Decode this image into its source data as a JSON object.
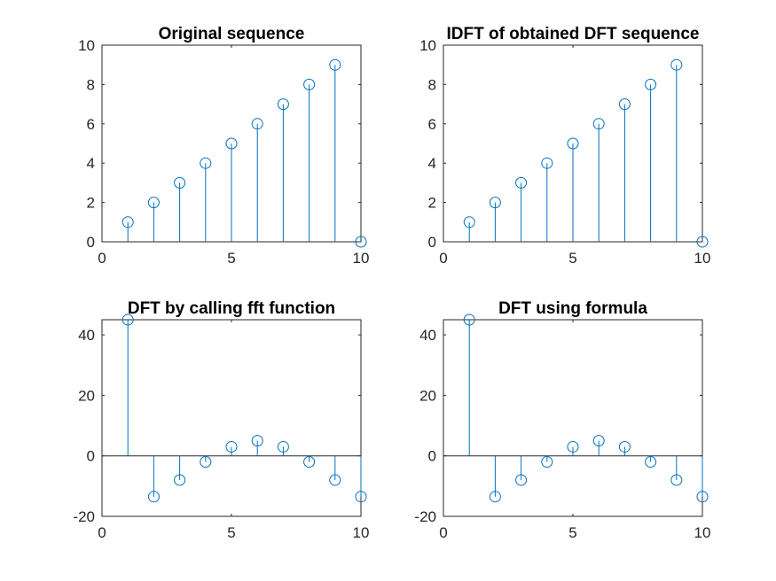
{
  "chart_data": [
    {
      "type": "stem",
      "title": "Original sequence",
      "x": [
        1,
        2,
        3,
        4,
        5,
        6,
        7,
        8,
        9,
        10
      ],
      "y": [
        1,
        2,
        3,
        4,
        5,
        6,
        7,
        8,
        9,
        0
      ],
      "xlim": [
        0,
        10
      ],
      "ylim": [
        0,
        10
      ],
      "xticks": [
        0,
        5,
        10
      ],
      "yticks": [
        0,
        2,
        4,
        6,
        8,
        10
      ],
      "color": "#0072bd"
    },
    {
      "type": "stem",
      "title": "IDFT of obtained DFT sequence",
      "x": [
        1,
        2,
        3,
        4,
        5,
        6,
        7,
        8,
        9,
        10
      ],
      "y": [
        1,
        2,
        3,
        4,
        5,
        6,
        7,
        8,
        9,
        0
      ],
      "xlim": [
        0,
        10
      ],
      "ylim": [
        0,
        10
      ],
      "xticks": [
        0,
        5,
        10
      ],
      "yticks": [
        0,
        2,
        4,
        6,
        8,
        10
      ],
      "color": "#0072bd"
    },
    {
      "type": "stem",
      "title": "DFT by calling fft function",
      "x": [
        1,
        2,
        3,
        4,
        5,
        6,
        7,
        8,
        9,
        10
      ],
      "y": [
        45,
        -13.5,
        -8,
        -2,
        3,
        5,
        3,
        -2,
        -8,
        -13.5
      ],
      "xlim": [
        0,
        10
      ],
      "ylim": [
        -20,
        45
      ],
      "xticks": [
        0,
        5,
        10
      ],
      "yticks": [
        -20,
        0,
        20,
        40
      ],
      "color": "#0072bd"
    },
    {
      "type": "stem",
      "title": "DFT using formula",
      "x": [
        1,
        2,
        3,
        4,
        5,
        6,
        7,
        8,
        9,
        10
      ],
      "y": [
        45,
        -13.5,
        -8,
        -2,
        3,
        5,
        3,
        -2,
        -8,
        -13.5
      ],
      "xlim": [
        0,
        10
      ],
      "ylim": [
        -20,
        45
      ],
      "xticks": [
        0,
        5,
        10
      ],
      "yticks": [
        -20,
        0,
        20,
        40
      ],
      "color": "#0072bd"
    }
  ]
}
